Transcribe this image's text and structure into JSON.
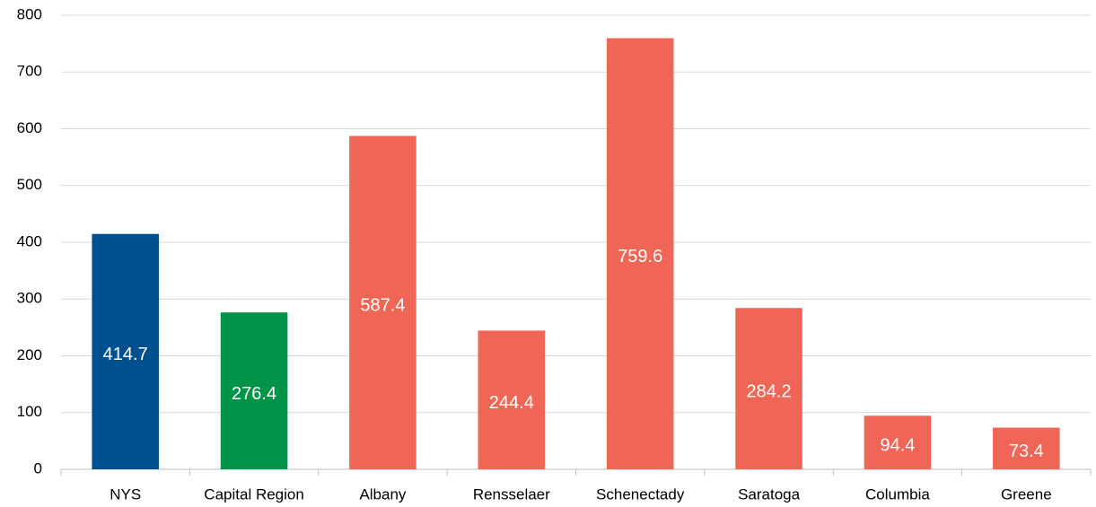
{
  "chart_data": {
    "type": "bar",
    "categories": [
      "NYS",
      "Capital Region",
      "Albany",
      "Rensselaer",
      "Schenectady",
      "Saratoga",
      "Columbia",
      "Greene"
    ],
    "values": [
      414.7,
      276.4,
      587.4,
      244.4,
      759.6,
      284.2,
      94.4,
      73.4
    ],
    "colors": [
      "#00508f",
      "#009448",
      "#f06656",
      "#f06656",
      "#f06656",
      "#f06656",
      "#f06656",
      "#f06656"
    ],
    "ylim": [
      0,
      800
    ],
    "yticks": [
      0,
      100,
      200,
      300,
      400,
      500,
      600,
      700,
      800
    ],
    "grid": true
  }
}
